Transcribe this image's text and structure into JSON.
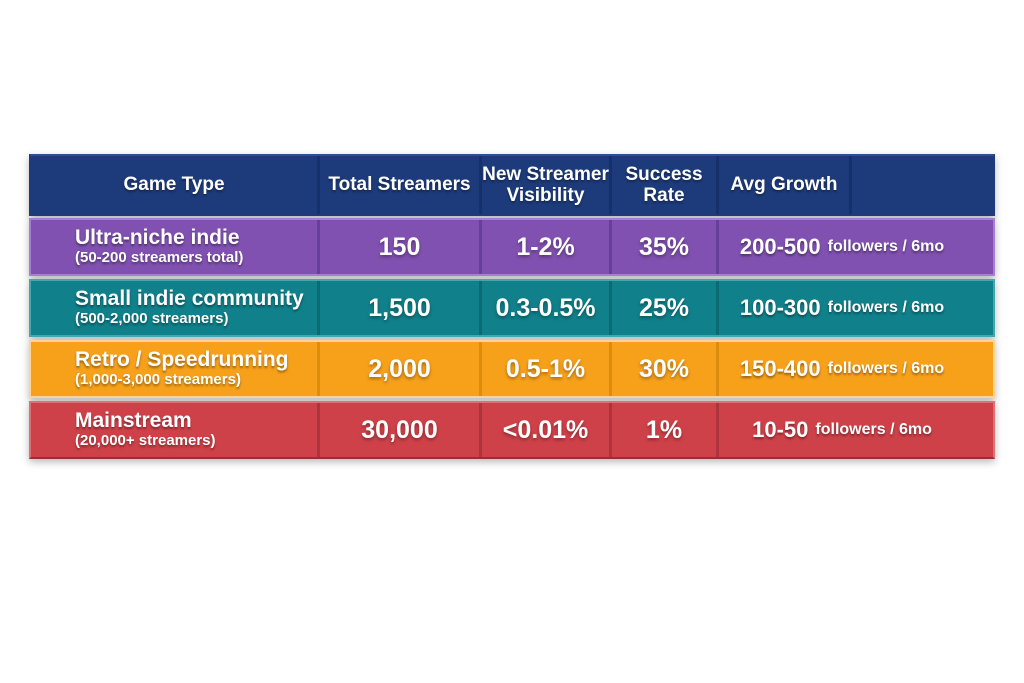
{
  "palette": {
    "page_background": "#ffffff",
    "header_bg": "#1d3b7a",
    "header_divider": "#16306b",
    "row_ultra_niche": "#8151b1",
    "row_small_indie": "#10808b",
    "row_retro": "#f7a11b",
    "row_mainstream": "#cf4149",
    "text": "#ffffff"
  },
  "table": {
    "header": {
      "game_type": "Game Type",
      "total_streamers": "Total Streamers",
      "new_streamer_visibility_line1": "New Streamer",
      "new_streamer_visibility_line2": "Visibility",
      "success_rate_line1": "Success",
      "success_rate_line2": "Rate",
      "avg_growth": "Avg Growth"
    },
    "rows": [
      {
        "game_type": "Ultra-niche indie",
        "game_type_detail": "(50-200 streamers total)",
        "total_streamers": "150",
        "new_streamer_visibility": "1-2%",
        "success_rate": "35%",
        "avg_growth_value": "200-500",
        "avg_growth_unit": "followers / 6mo",
        "color": "#8151b1"
      },
      {
        "game_type": "Small indie community",
        "game_type_detail": "(500-2,000 streamers)",
        "total_streamers": "1,500",
        "new_streamer_visibility": "0.3-0.5%",
        "success_rate": "25%",
        "avg_growth_value": "100-300",
        "avg_growth_unit": "followers / 6mo",
        "color": "#10808b"
      },
      {
        "game_type": "Retro / Speedrunning",
        "game_type_detail": "(1,000-3,000 streamers)",
        "total_streamers": "2,000",
        "new_streamer_visibility": "0.5-1%",
        "success_rate": "30%",
        "avg_growth_value": "150-400",
        "avg_growth_unit": "followers / 6mo",
        "color": "#f7a11b"
      },
      {
        "game_type": "Mainstream",
        "game_type_detail": "(20,000+ streamers)",
        "total_streamers": "30,000",
        "new_streamer_visibility": "<0.01%",
        "success_rate": "1%",
        "avg_growth_value": "10-50",
        "avg_growth_unit": "followers / 6mo",
        "color": "#cf4149"
      }
    ]
  },
  "chart_data": {
    "type": "table",
    "title": "",
    "columns": [
      "Game Type",
      "Total Streamers",
      "New Streamer Visibility",
      "Success Rate",
      "Avg Growth"
    ],
    "rows": [
      [
        "Ultra-niche indie (50-200 streamers total)",
        "150",
        "1-2%",
        "35%",
        "200-500 followers / 6mo"
      ],
      [
        "Small indie community (500-2,000 streamers)",
        "1,500",
        "0.3-0.5%",
        "25%",
        "100-300 followers / 6mo"
      ],
      [
        "Retro / Speedrunning (1,000-3,000 streamers)",
        "2,000",
        "0.5-1%",
        "30%",
        "150-400 followers / 6mo"
      ],
      [
        "Mainstream (20,000+ streamers)",
        "30,000",
        "<0.01%",
        "1%",
        "10-50 followers / 6mo"
      ]
    ]
  }
}
